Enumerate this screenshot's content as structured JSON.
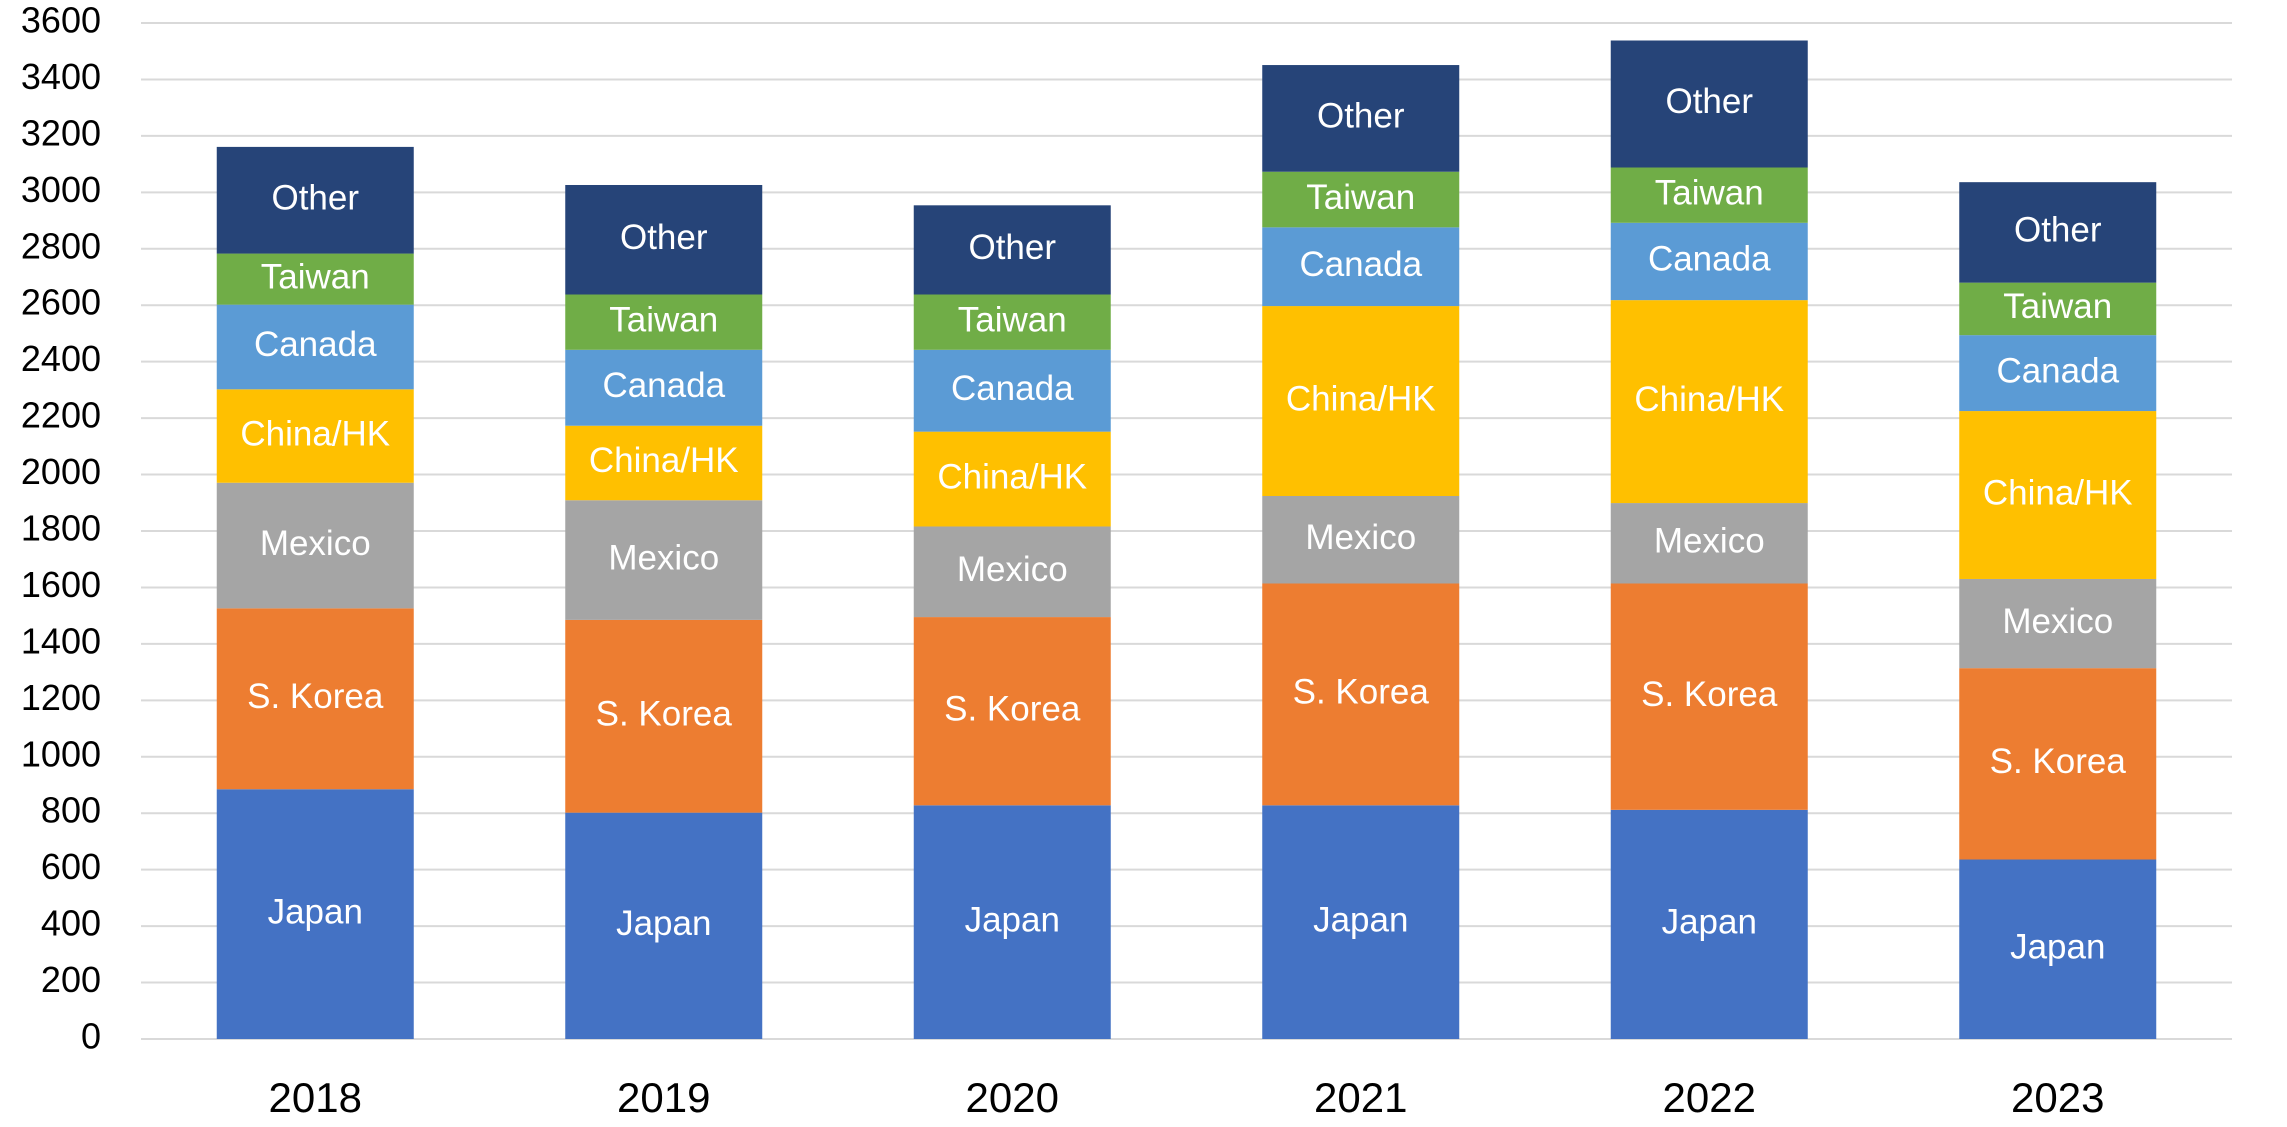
{
  "chart_data": {
    "type": "stacked_bar",
    "categories": [
      "2018",
      "2019",
      "2020",
      "2021",
      "2022",
      "2023"
    ],
    "series": [
      {
        "name": "Japan",
        "color": "#4472c4",
        "values": [
          885,
          802,
          828,
          828,
          812,
          636
        ]
      },
      {
        "name": "S. Korea",
        "color": "#ed7d31",
        "values": [
          641,
          683,
          667,
          786,
          802,
          678
        ]
      },
      {
        "name": "Mexico",
        "color": "#a5a5a5",
        "values": [
          445,
          424,
          321,
          310,
          285,
          316
        ]
      },
      {
        "name": "China/HK",
        "color": "#ffc000",
        "values": [
          331,
          264,
          336,
          673,
          719,
          595
        ]
      },
      {
        "name": "Canada",
        "color": "#5b9bd5",
        "values": [
          300,
          269,
          290,
          279,
          274,
          269
        ]
      },
      {
        "name": "Taiwan",
        "color": "#70ad47",
        "values": [
          181,
          196,
          196,
          197,
          196,
          186
        ]
      },
      {
        "name": "Other",
        "color": "#264478",
        "values": [
          378,
          388,
          316,
          378,
          450,
          356
        ]
      }
    ],
    "ylim": [
      0,
      3600
    ],
    "yticks": [
      0,
      200,
      400,
      600,
      800,
      1000,
      1200,
      1400,
      1600,
      1800,
      2000,
      2200,
      2400,
      2600,
      2800,
      3000,
      3200,
      3400,
      3600
    ],
    "grid": true
  }
}
